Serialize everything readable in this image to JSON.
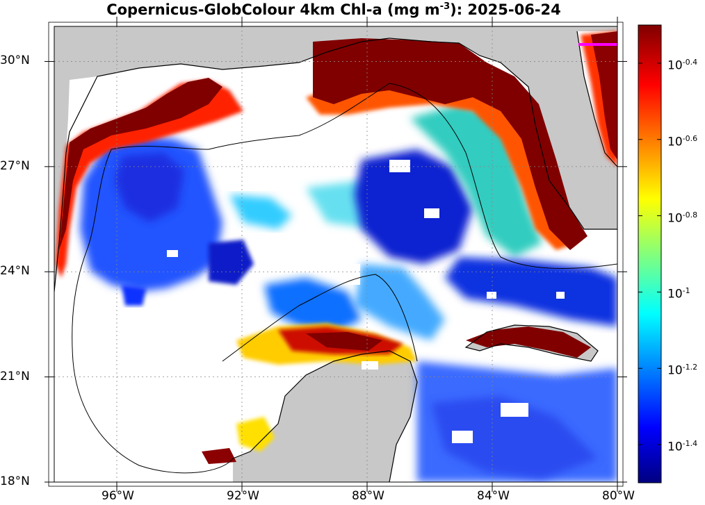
{
  "title": {
    "prefix": "Copernicus-GlobColour 4km Chl-a (mg m",
    "exponent": "-3",
    "suffix": "): 2025-06-24"
  },
  "map": {
    "lat_range": [
      18,
      31
    ],
    "lon_range": [
      -98,
      -80
    ],
    "lat_ticks": [
      {
        "value": 30,
        "label": "30°N"
      },
      {
        "value": 27,
        "label": "27°N"
      },
      {
        "value": 24,
        "label": "24°N"
      },
      {
        "value": 21,
        "label": "21°N"
      },
      {
        "value": 18,
        "label": "18°N"
      }
    ],
    "lon_ticks": [
      {
        "value": -96,
        "label": "96°W"
      },
      {
        "value": -92,
        "label": "92°W"
      },
      {
        "value": -88,
        "label": "88°W"
      },
      {
        "value": -84,
        "label": "84°W"
      },
      {
        "value": -80,
        "label": "80°W"
      }
    ],
    "land_color": "#c8c8c8",
    "no_data_color": "#ffffff",
    "grid": "dashed"
  },
  "colorbar": {
    "scale": "log10",
    "range": [
      -1.5,
      -0.3
    ],
    "tick_base": "10",
    "ticks": [
      {
        "value": -0.4,
        "exp": "-0.4"
      },
      {
        "value": -0.6,
        "exp": "-0.6"
      },
      {
        "value": -0.8,
        "exp": "-0.8"
      },
      {
        "value": -1.0,
        "exp": "-1"
      },
      {
        "value": -1.2,
        "exp": "-1.2"
      },
      {
        "value": -1.4,
        "exp": "-1.4"
      }
    ],
    "colormap": [
      "#000080",
      "#0000ff",
      "#00ffff",
      "#ffff00",
      "#ff0000",
      "#800000"
    ]
  }
}
